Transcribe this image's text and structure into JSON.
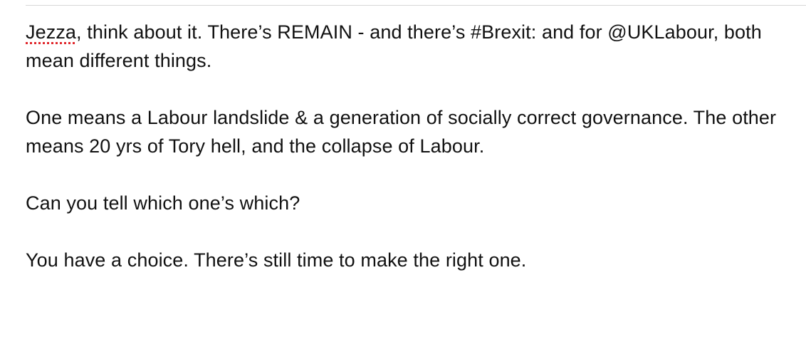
{
  "editor": {
    "paragraphs": [
      {
        "misspelled_word": "Jezza",
        "text": ", think about it. There’s REMAIN - and there’s #Brexit: and for @UKLabour, both mean different things."
      },
      {
        "text": "One means a Labour landslide & a generation of socially correct governance. The other means 20 yrs of Tory hell, and the collapse of Labour."
      },
      {
        "text": "Can you tell which one’s which?"
      },
      {
        "text": "You have a choice. There’s still time to make the right one."
      }
    ],
    "spellcheck_underline_color": "#e0282d"
  }
}
